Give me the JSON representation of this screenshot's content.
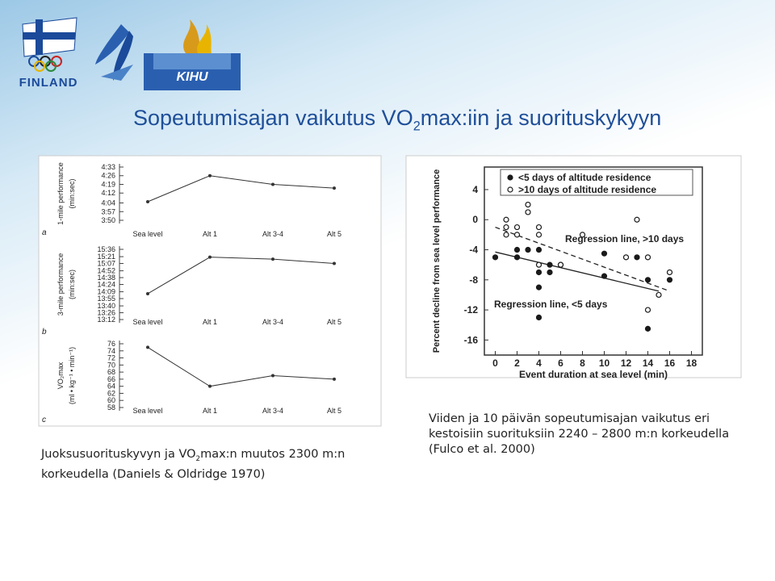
{
  "logos": {
    "olympic": "FINLAND",
    "kihu": "KIHU"
  },
  "slide": {
    "title": [
      "Sopeutumisajan vaikutus VO",
      "2",
      "max:iin ja suorituskykyyn"
    ],
    "caption_left": [
      "Juoksusuorituskyvyn ja VO",
      "2",
      "max:n muutos 2300 m:n korkeudella (Daniels & Oldridge 1970)"
    ],
    "caption_right": "Viiden ja 10 päivän sopeutumisajan vaikutus eri kestoisiin suorituksiin 2240 – 2800 m:n korkeudella (Fulco et al. 2000)"
  },
  "chart_data": [
    {
      "type": "line",
      "panel": "a",
      "ylabel": "1-mile performance",
      "ylabel_unit": "(min:sec)",
      "categories": [
        "Sea level",
        "Alt 1",
        "Alt 3-4",
        "Alt 5"
      ],
      "values": [
        245,
        266,
        259,
        256
      ],
      "color": "#333333",
      "ylim": [
        230,
        273
      ],
      "yticks": [
        {
          "value": 230,
          "label": "3:50"
        },
        {
          "value": 237,
          "label": "3:57"
        },
        {
          "value": 244,
          "label": "4:04"
        },
        {
          "value": 252,
          "label": "4:12"
        },
        {
          "value": 259,
          "label": "4:19"
        },
        {
          "value": 266,
          "label": "4:26"
        },
        {
          "value": 273,
          "label": "4:33"
        }
      ]
    },
    {
      "type": "line",
      "panel": "b",
      "ylabel": "3-mile performance",
      "ylabel_unit": "(min:sec)",
      "categories": [
        "Sea level",
        "Alt 1",
        "Alt 3-4",
        "Alt 5"
      ],
      "values": [
        845,
        920,
        916,
        907
      ],
      "color": "#333333",
      "ylim": [
        792,
        936
      ],
      "yticks": [
        {
          "value": 792,
          "label": "13:12"
        },
        {
          "value": 806,
          "label": "13:26"
        },
        {
          "value": 820,
          "label": "13:40"
        },
        {
          "value": 835,
          "label": "13:55"
        },
        {
          "value": 849,
          "label": "14:09"
        },
        {
          "value": 864,
          "label": "14:24"
        },
        {
          "value": 878,
          "label": "14:38"
        },
        {
          "value": 892,
          "label": "14:52"
        },
        {
          "value": 907,
          "label": "15:07"
        },
        {
          "value": 921,
          "label": "15:21"
        },
        {
          "value": 936,
          "label": "15:36"
        }
      ]
    },
    {
      "type": "line",
      "panel": "c",
      "ylabel": "VO₂max",
      "ylabel_unit": "(ml • kg⁻¹ • min⁻¹)",
      "categories": [
        "Sea level",
        "Alt 1",
        "Alt 3-4",
        "Alt 5"
      ],
      "values": [
        75,
        64,
        67,
        66
      ],
      "color": "#333333",
      "ylim": [
        58,
        76
      ],
      "yticks": [
        58,
        60,
        62,
        64,
        66,
        68,
        70,
        72,
        74,
        76
      ]
    },
    {
      "type": "scatter",
      "ylabel": "Percent decline from sea level performance",
      "xlabel": "Event duration at sea level (min)",
      "xlim": [
        -1,
        19
      ],
      "ylim": [
        -18,
        7
      ],
      "xticks": [
        0,
        2,
        4,
        6,
        8,
        10,
        12,
        14,
        16,
        18
      ],
      "yticks": [
        -16,
        -12,
        -8,
        -4,
        0,
        4
      ],
      "series": [
        {
          "name": "<5 days of altitude residence",
          "marker": "filled",
          "color": "#1a1a1a",
          "x": [
            0,
            2,
            2,
            3,
            4,
            4,
            4,
            5,
            5,
            6,
            4,
            10,
            10,
            13,
            14,
            14,
            16
          ],
          "values": [
            -5,
            -5,
            -4,
            -4,
            -4,
            -7,
            -9,
            -6,
            -7,
            -6,
            -13,
            -4.5,
            -7.5,
            -5,
            -8,
            -14.5,
            -8
          ]
        },
        {
          "name": ">10 days of altitude residence",
          "marker": "open",
          "color": "#1a1a1a",
          "x": [
            1,
            1,
            1,
            2,
            2,
            3,
            3,
            4,
            4,
            4,
            6,
            8,
            12,
            13,
            14,
            14,
            15,
            16
          ],
          "values": [
            0,
            -1,
            -2,
            -1,
            -2,
            1,
            2,
            -1,
            -2,
            -6,
            -6,
            -2,
            -5,
            0,
            -5,
            -12,
            -10,
            -7
          ]
        }
      ],
      "lines": [
        {
          "style": "dashed",
          "x": [
            0,
            16
          ],
          "values": [
            -1,
            -9.5
          ]
        },
        {
          "style": "solid",
          "x": [
            0,
            15
          ],
          "values": [
            -4.3,
            -9.5
          ]
        }
      ],
      "annotations": [
        "Regression line, >10 days",
        "Regression line, <5 days"
      ]
    }
  ]
}
